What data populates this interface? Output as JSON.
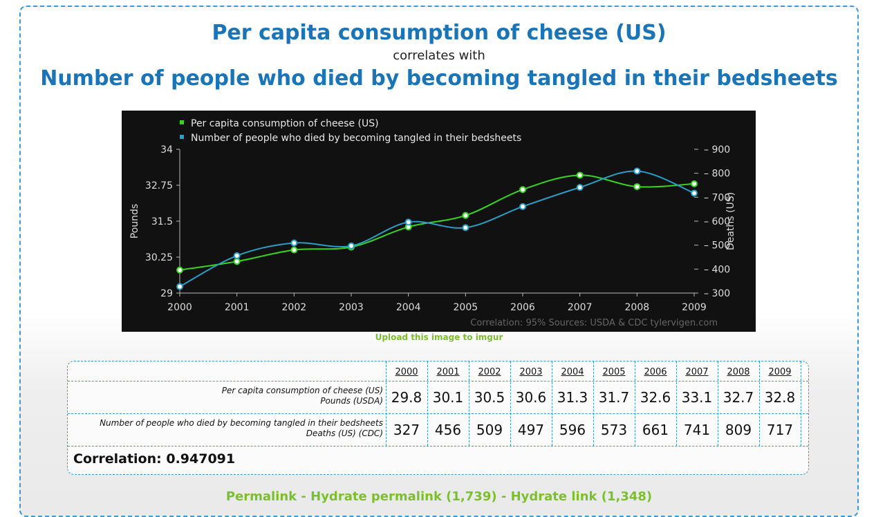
{
  "header": {
    "title1": "Per capita consumption of cheese (US)",
    "subtitle": "correlates with",
    "title2": "Number of people who died by becoming tangled in their bedsheets"
  },
  "upload_link": "Upload this image to imgur",
  "chart_data": {
    "type": "line",
    "x": [
      2000,
      2001,
      2002,
      2003,
      2004,
      2005,
      2006,
      2007,
      2008,
      2009
    ],
    "series": [
      {
        "name": "Per capita consumption of cheese (US)",
        "axis": "left",
        "color": "#37d61e",
        "values": [
          29.8,
          30.1,
          30.5,
          30.6,
          31.3,
          31.7,
          32.6,
          33.1,
          32.7,
          32.8
        ]
      },
      {
        "name": "Number of people who died by becoming tangled in their bedsheets",
        "axis": "right",
        "color": "#2a9ec6",
        "values": [
          327,
          456,
          509,
          497,
          596,
          573,
          661,
          741,
          809,
          717
        ]
      }
    ],
    "y_left": {
      "label": "Pounds",
      "range": [
        29,
        34
      ],
      "ticks": [
        "29",
        "30.25",
        "31.5",
        "32.75",
        "34"
      ]
    },
    "y_right": {
      "label": "Deaths (US)",
      "range": [
        300,
        900
      ],
      "ticks": [
        "300",
        "400",
        "500",
        "600",
        "700",
        "800",
        "900"
      ]
    },
    "footer": "Correlation: 95%    Sources: USDA & CDC   tylervigen.com",
    "legend_position": "top-left"
  },
  "table": {
    "years": [
      "2000",
      "2001",
      "2002",
      "2003",
      "2004",
      "2005",
      "2006",
      "2007",
      "2008",
      "2009"
    ],
    "rows": [
      {
        "label": "Per capita consumption of cheese (US)",
        "sublabel": "Pounds (USDA)",
        "values": [
          "29.8",
          "30.1",
          "30.5",
          "30.6",
          "31.3",
          "31.7",
          "32.6",
          "33.1",
          "32.7",
          "32.8"
        ]
      },
      {
        "label": "Number of people who died by becoming tangled in their bedsheets",
        "sublabel": "Deaths (US) (CDC)",
        "values": [
          "327",
          "456",
          "509",
          "497",
          "596",
          "573",
          "661",
          "741",
          "809",
          "717"
        ]
      }
    ],
    "correlation": "Correlation: 0.947091"
  },
  "bottom_text": "Permalink - Hydrate permalink (1,739) - Hydrate link (1,348)"
}
